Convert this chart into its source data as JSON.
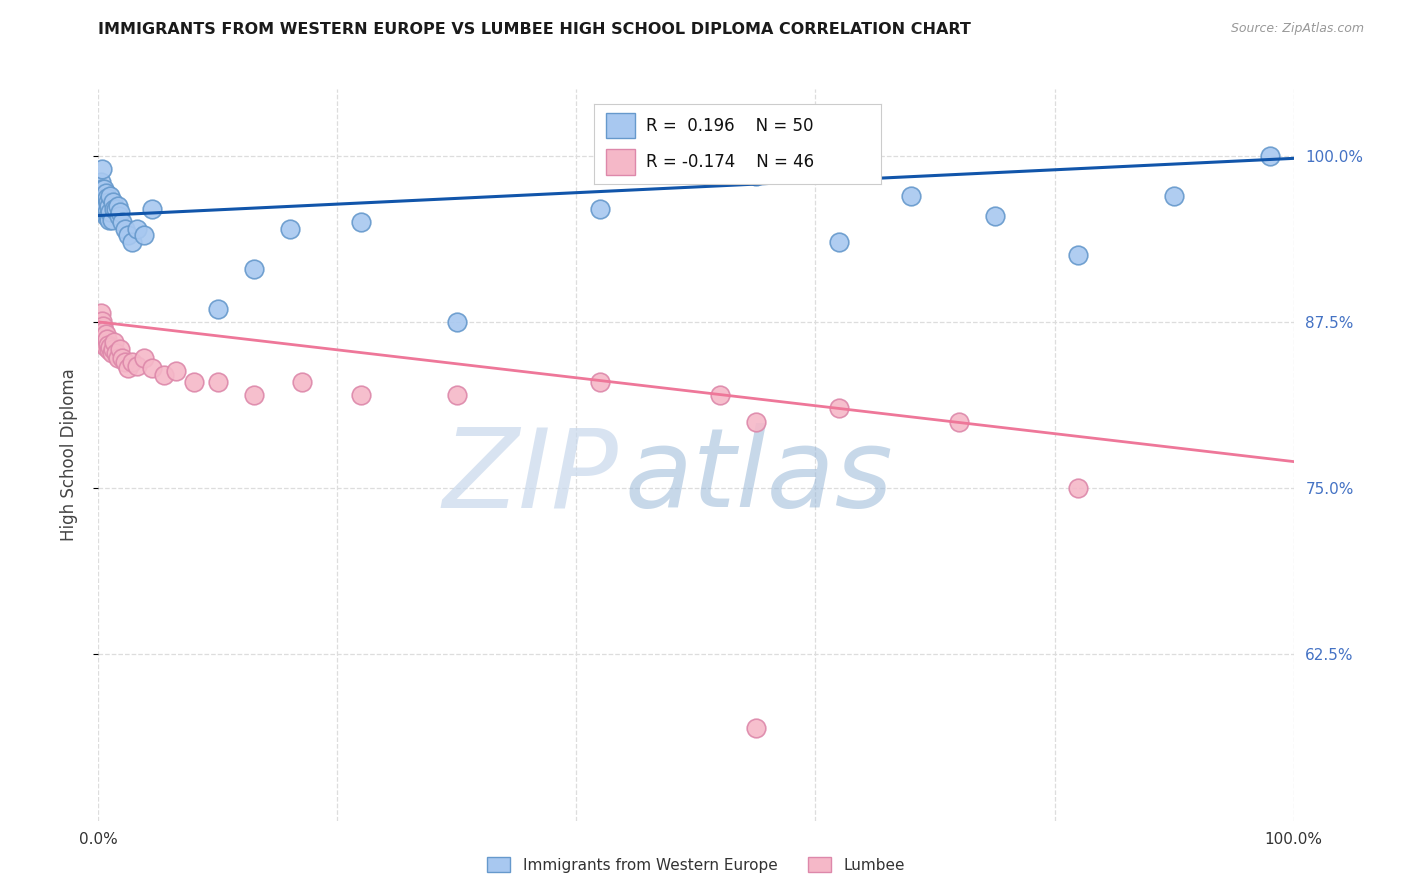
{
  "title": "IMMIGRANTS FROM WESTERN EUROPE VS LUMBEE HIGH SCHOOL DIPLOMA CORRELATION CHART",
  "source": "Source: ZipAtlas.com",
  "ylabel": "High School Diploma",
  "right_yticks": [
    1.0,
    0.875,
    0.75,
    0.625
  ],
  "right_yticklabels": [
    "100.0%",
    "87.5%",
    "75.0%",
    "62.5%"
  ],
  "legend_label_blue": "Immigrants from Western Europe",
  "legend_label_pink": "Lumbee",
  "blue_R": "0.196",
  "blue_N": "50",
  "pink_R": "-0.174",
  "pink_N": "46",
  "blue_color": "#A8C8F0",
  "blue_edge": "#6699CC",
  "pink_color": "#F5B8C8",
  "pink_edge": "#DD88AA",
  "blue_line_color": "#1155AA",
  "pink_line_color": "#EE7799",
  "watermark_zip_color": "#C5D5E8",
  "watermark_atlas_color": "#88AACC",
  "watermark_text_zip": "ZIP",
  "watermark_text_atlas": "atlas",
  "blue_x": [
    0.001,
    0.001,
    0.002,
    0.002,
    0.003,
    0.003,
    0.003,
    0.004,
    0.004,
    0.005,
    0.005,
    0.005,
    0.006,
    0.006,
    0.006,
    0.007,
    0.007,
    0.008,
    0.008,
    0.009,
    0.009,
    0.01,
    0.01,
    0.011,
    0.012,
    0.013,
    0.015,
    0.016,
    0.017,
    0.018,
    0.02,
    0.022,
    0.025,
    0.028,
    0.032,
    0.038,
    0.045,
    0.1,
    0.13,
    0.16,
    0.22,
    0.3,
    0.42,
    0.55,
    0.62,
    0.68,
    0.75,
    0.82,
    0.9,
    0.98
  ],
  "blue_y": [
    0.975,
    0.965,
    0.98,
    0.97,
    0.99,
    0.975,
    0.965,
    0.97,
    0.96,
    0.975,
    0.968,
    0.958,
    0.972,
    0.962,
    0.955,
    0.968,
    0.958,
    0.965,
    0.955,
    0.962,
    0.952,
    0.97,
    0.958,
    0.952,
    0.965,
    0.96,
    0.96,
    0.962,
    0.955,
    0.958,
    0.95,
    0.945,
    0.94,
    0.935,
    0.945,
    0.94,
    0.96,
    0.885,
    0.915,
    0.945,
    0.95,
    0.875,
    0.96,
    0.985,
    0.935,
    0.97,
    0.955,
    0.925,
    0.97,
    1.0
  ],
  "pink_x": [
    0.001,
    0.001,
    0.001,
    0.002,
    0.002,
    0.002,
    0.003,
    0.003,
    0.004,
    0.004,
    0.005,
    0.005,
    0.006,
    0.006,
    0.007,
    0.008,
    0.009,
    0.01,
    0.011,
    0.012,
    0.013,
    0.015,
    0.016,
    0.018,
    0.02,
    0.022,
    0.025,
    0.028,
    0.032,
    0.038,
    0.045,
    0.055,
    0.065,
    0.08,
    0.1,
    0.13,
    0.17,
    0.22,
    0.3,
    0.42,
    0.52,
    0.55,
    0.62,
    0.72,
    0.82,
    0.55
  ],
  "pink_y": [
    0.875,
    0.87,
    0.865,
    0.882,
    0.872,
    0.862,
    0.876,
    0.866,
    0.872,
    0.862,
    0.868,
    0.858,
    0.866,
    0.856,
    0.862,
    0.858,
    0.854,
    0.856,
    0.852,
    0.855,
    0.86,
    0.852,
    0.848,
    0.855,
    0.848,
    0.845,
    0.84,
    0.845,
    0.842,
    0.848,
    0.84,
    0.835,
    0.838,
    0.83,
    0.83,
    0.82,
    0.83,
    0.82,
    0.82,
    0.83,
    0.82,
    0.8,
    0.81,
    0.8,
    0.75,
    0.57
  ],
  "xmin": 0.0,
  "xmax": 1.0,
  "ymin": 0.5,
  "ymax": 1.05,
  "blue_trend_x": [
    0.0,
    1.0
  ],
  "blue_trend_y": [
    0.955,
    0.998
  ],
  "pink_trend_x": [
    0.0,
    1.0
  ],
  "pink_trend_y": [
    0.875,
    0.77
  ],
  "grid_color": "#DDDDDD",
  "background_color": "#FFFFFF",
  "ytick_gridlines": [
    1.0,
    0.875,
    0.75,
    0.625
  ],
  "xtick_gridlines": [
    0.0,
    0.2,
    0.4,
    0.6,
    0.8,
    1.0
  ]
}
